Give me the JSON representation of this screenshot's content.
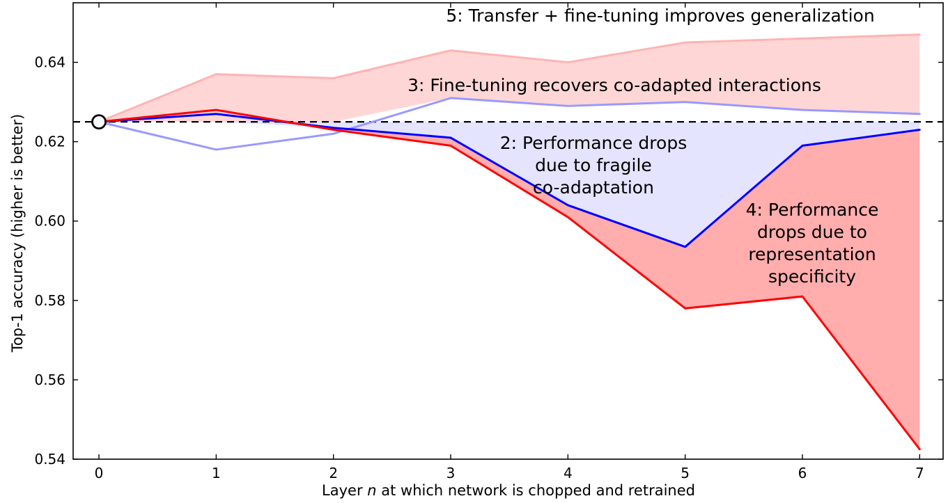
{
  "chart_data": {
    "type": "line",
    "title": "",
    "ylabel": "Top-1 accuracy (higher is better)",
    "xlabel_parts": [
      "Layer ",
      "n",
      " at which network is chopped and retrained"
    ],
    "xlim": [
      -0.22,
      7.2
    ],
    "ylim": [
      0.54,
      0.655
    ],
    "grid": false,
    "x": [
      0,
      1,
      2,
      3,
      4,
      5,
      6,
      7
    ],
    "xticks": {
      "values": [
        0,
        1,
        2,
        3,
        4,
        5,
        6,
        7
      ],
      "labels": [
        "0",
        "1",
        "2",
        "3",
        "4",
        "5",
        "6",
        "7"
      ]
    },
    "yticks": {
      "values": [
        0.54,
        0.56,
        0.58,
        0.6,
        0.62,
        0.64
      ],
      "labels": [
        "0.54",
        "0.56",
        "0.58",
        "0.60",
        "0.62",
        "0.64"
      ]
    },
    "baseline": {
      "value": 0.625,
      "color": "#000000",
      "style": "dashed"
    },
    "marker": {
      "x": 0,
      "y": 0.625,
      "radius": 9.5,
      "fill": "#ffffff",
      "stroke": "#000000"
    },
    "series": [
      {
        "name": "transfer-finetune-line5",
        "color": "#ffb3b3",
        "width": 3,
        "values": [
          0.625,
          0.637,
          0.636,
          0.643,
          0.64,
          0.645,
          0.646,
          0.647
        ]
      },
      {
        "name": "finetune-recovers-line3",
        "color": "#9999ff",
        "width": 3,
        "values": [
          0.625,
          0.618,
          0.622,
          0.631,
          0.629,
          0.63,
          0.628,
          0.627
        ]
      },
      {
        "name": "fragile-coadaptation-line2",
        "color": "#0000ff",
        "width": 3,
        "values": [
          0.625,
          0.627,
          0.6235,
          0.621,
          0.604,
          0.5935,
          0.619,
          0.623
        ]
      },
      {
        "name": "representation-specificity-line4",
        "color": "#ff0000",
        "width": 3,
        "values": [
          0.625,
          0.628,
          0.623,
          0.619,
          0.601,
          0.578,
          0.581,
          0.5425
        ]
      }
    ],
    "areas": [
      {
        "name": "transfer-improvement-pink",
        "fill": "rgba(255,70,70,0.22)",
        "upper": [
          0.625,
          0.637,
          0.636,
          0.643,
          0.64,
          0.645,
          0.646,
          0.647
        ],
        "lower": [
          0.625,
          0.625,
          0.625,
          0.631,
          0.629,
          0.63,
          0.628,
          0.627
        ]
      },
      {
        "name": "fragile-coadaptation-blue",
        "fill": "rgba(50,50,255,0.13)",
        "upper": [
          0.625,
          0.625,
          0.625,
          0.625,
          0.625,
          0.625,
          0.625,
          0.625
        ],
        "lower": [
          0.625,
          0.625,
          0.6235,
          0.621,
          0.604,
          0.5935,
          0.619,
          0.623
        ]
      },
      {
        "name": "representation-specificity-red",
        "fill": "rgba(255,20,20,0.35)",
        "upper": [
          0.625,
          0.627,
          0.6235,
          0.621,
          0.604,
          0.5935,
          0.619,
          0.623
        ],
        "lower": [
          0.625,
          0.627,
          0.623,
          0.619,
          0.601,
          0.578,
          0.581,
          0.5425
        ]
      }
    ],
    "annotations": [
      {
        "name": "ann-5",
        "text": "5: Transfer + fine-tuning improves generalization"
      },
      {
        "name": "ann-3",
        "text": "3: Fine-tuning recovers co-adapted interactions"
      },
      {
        "name": "ann-2",
        "text": "2: Performance drops\ndue to fragile\nco-adaptation"
      },
      {
        "name": "ann-4",
        "text": "4: Performance\ndrops due to\nrepresentation\nspecificity"
      }
    ]
  }
}
